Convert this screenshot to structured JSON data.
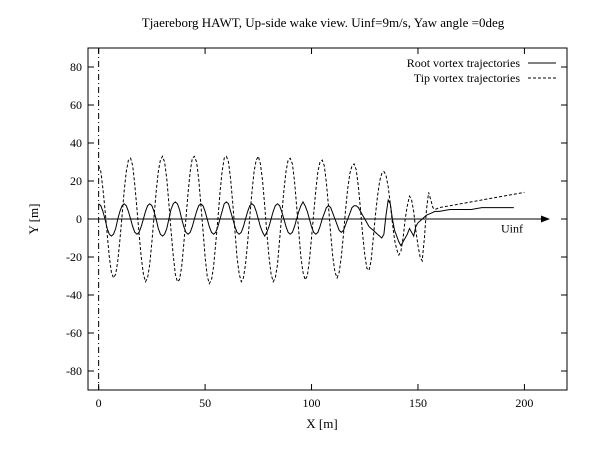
{
  "chart_data": {
    "type": "line",
    "title": "Tjaereborg HAWT, Up-side wake view. Uinf=9m/s, Yaw angle =0deg",
    "xlabel": "X [m]",
    "ylabel": "Y [m]",
    "xlim": [
      -5,
      220
    ],
    "ylim": [
      -90,
      90
    ],
    "xticks": [
      0,
      50,
      100,
      150,
      200
    ],
    "yticks": [
      -80,
      -60,
      -40,
      -20,
      0,
      20,
      40,
      60,
      80
    ],
    "legend_position": "top-right",
    "grid": false,
    "annotation": {
      "text": "Uinf",
      "x": 189,
      "y": -5
    },
    "wind_arrow": {
      "x_start": -5,
      "x_end": 212,
      "y": 0
    },
    "rotor_line_x": 0,
    "series": [
      {
        "name": "Root vortex trajectories",
        "style": "solid",
        "x": [
          0,
          1,
          2,
          3,
          4,
          5,
          6,
          7,
          8,
          9,
          10,
          11,
          12,
          13,
          14,
          15,
          16,
          17,
          18,
          19,
          20,
          21,
          22,
          23,
          24,
          25,
          26,
          27,
          28,
          29,
          30,
          31,
          32,
          33,
          34,
          35,
          36,
          37,
          38,
          39,
          40,
          41,
          42,
          43,
          44,
          45,
          46,
          47,
          48,
          49,
          50,
          51,
          52,
          53,
          54,
          55,
          56,
          57,
          58,
          59,
          60,
          61,
          62,
          63,
          64,
          65,
          66,
          67,
          68,
          69,
          70,
          71,
          72,
          73,
          74,
          75,
          76,
          77,
          78,
          79,
          80,
          81,
          82,
          83,
          84,
          85,
          86,
          87,
          88,
          89,
          90,
          91,
          92,
          93,
          94,
          95,
          96,
          97,
          98,
          99,
          100,
          101,
          102,
          103,
          104,
          105,
          106,
          107,
          108,
          109,
          110,
          111,
          112,
          113,
          114,
          115,
          116,
          117,
          118,
          119,
          120,
          121,
          122,
          123,
          124,
          125,
          126,
          127,
          128,
          129,
          130,
          131,
          132,
          133,
          134,
          135,
          136,
          137,
          138,
          139,
          140,
          141,
          142,
          143,
          144,
          145,
          146,
          147,
          148,
          149,
          150,
          152,
          154,
          156,
          158,
          160,
          165,
          170,
          175,
          180,
          185,
          190,
          195
        ],
        "y": [
          8,
          7,
          4,
          0,
          -5,
          -8,
          -9,
          -8,
          -5,
          0,
          4,
          7,
          8,
          7,
          4,
          0,
          -4,
          -7,
          -8,
          -7,
          -4,
          0,
          4,
          7,
          8,
          7,
          4,
          0,
          -5,
          -8,
          -9,
          -8,
          -5,
          0,
          5,
          8,
          9,
          8,
          5,
          0,
          -4,
          -7,
          -8,
          -7,
          -4,
          0,
          4,
          7,
          8,
          7,
          4,
          0,
          -4,
          -7,
          -8,
          -7,
          -4,
          0,
          4,
          8,
          9,
          8,
          4,
          0,
          -4,
          -7,
          -8,
          -7,
          -4,
          0,
          4,
          7,
          8,
          7,
          4,
          0,
          -4,
          -7,
          -9,
          -7,
          -4,
          0,
          4,
          7,
          8,
          7,
          4,
          0,
          -4,
          -7,
          -8,
          -7,
          -4,
          0,
          4,
          7,
          9,
          7,
          4,
          0,
          -4,
          -7,
          -8,
          -7,
          -4,
          0,
          3,
          6,
          7,
          6,
          3,
          0,
          -3,
          -6,
          -7,
          -6,
          -3,
          0,
          3,
          6,
          7,
          7,
          6,
          4,
          2,
          0,
          -2,
          -4,
          -5,
          -6,
          -7,
          -8,
          -9,
          -10,
          -8,
          2,
          10,
          8,
          0,
          -6,
          -9,
          -12,
          -14,
          -12,
          -10,
          -8,
          -5,
          -7,
          -9,
          -4,
          -2,
          0,
          2,
          3,
          4,
          4,
          5,
          5,
          5,
          6,
          6,
          6,
          6
        ]
      },
      {
        "name": "Tip vortex trajectories",
        "style": "dashed",
        "x": [
          0,
          1,
          2,
          3,
          4,
          5,
          6,
          7,
          8,
          9,
          10,
          11,
          12,
          13,
          14,
          15,
          16,
          17,
          18,
          19,
          20,
          21,
          22,
          23,
          24,
          25,
          26,
          27,
          28,
          29,
          30,
          31,
          32,
          33,
          34,
          35,
          36,
          37,
          38,
          39,
          40,
          41,
          42,
          43,
          44,
          45,
          46,
          47,
          48,
          49,
          50,
          51,
          52,
          53,
          54,
          55,
          56,
          57,
          58,
          59,
          60,
          61,
          62,
          63,
          64,
          65,
          66,
          67,
          68,
          69,
          70,
          71,
          72,
          73,
          74,
          75,
          76,
          77,
          78,
          79,
          80,
          81,
          82,
          83,
          84,
          85,
          86,
          87,
          88,
          89,
          90,
          91,
          92,
          93,
          94,
          95,
          96,
          97,
          98,
          99,
          100,
          101,
          102,
          103,
          104,
          105,
          106,
          107,
          108,
          109,
          110,
          111,
          112,
          113,
          114,
          115,
          116,
          117,
          118,
          119,
          120,
          121,
          122,
          123,
          124,
          125,
          126,
          127,
          128,
          129,
          130,
          131,
          132,
          133,
          134,
          135,
          136,
          137,
          138,
          139,
          140,
          141,
          142,
          143,
          144,
          145,
          146,
          147,
          148,
          149,
          150,
          151,
          152,
          153,
          154,
          155,
          156,
          157,
          158,
          160,
          165,
          170,
          175,
          180,
          185,
          190,
          195,
          200
        ],
        "y": [
          28,
          25,
          16,
          5,
          -8,
          -20,
          -28,
          -31,
          -29,
          -22,
          -11,
          2,
          15,
          25,
          31,
          32,
          28,
          18,
          5,
          -8,
          -20,
          -29,
          -33,
          -31,
          -24,
          -12,
          1,
          14,
          25,
          31,
          33,
          30,
          21,
          8,
          -6,
          -19,
          -29,
          -33,
          -32,
          -25,
          -13,
          0,
          14,
          25,
          32,
          33,
          30,
          21,
          8,
          -6,
          -20,
          -30,
          -34,
          -32,
          -25,
          -13,
          0,
          14,
          25,
          32,
          33,
          30,
          21,
          8,
          -6,
          -20,
          -29,
          -33,
          -31,
          -24,
          -12,
          1,
          14,
          25,
          31,
          33,
          29,
          20,
          7,
          -7,
          -20,
          -29,
          -33,
          -31,
          -24,
          -11,
          2,
          15,
          25,
          31,
          32,
          29,
          20,
          7,
          -7,
          -20,
          -28,
          -32,
          -30,
          -22,
          -10,
          3,
          15,
          25,
          30,
          31,
          28,
          19,
          6,
          -8,
          -20,
          -28,
          -31,
          -28,
          -20,
          -8,
          5,
          16,
          24,
          28,
          29,
          26,
          17,
          5,
          -8,
          -19,
          -26,
          -27,
          -22,
          -10,
          2,
          12,
          20,
          24,
          25,
          23,
          17,
          8,
          -2,
          -11,
          -16,
          -19,
          -17,
          -10,
          0,
          7,
          12,
          10,
          4,
          -6,
          -14,
          -20,
          -22,
          -10,
          5,
          14,
          10,
          6,
          5,
          6,
          7,
          8,
          9,
          10,
          11,
          12,
          13,
          14
        ]
      }
    ]
  }
}
